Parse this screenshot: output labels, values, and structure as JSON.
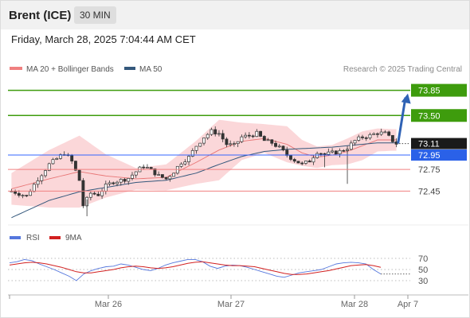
{
  "header": {
    "title": "Brent (ICE)",
    "timeframe": "30 MIN"
  },
  "datetime": "Friday, March 28, 2025 7:04:44 AM CET",
  "legend": {
    "ma20": "MA 20 + Bollinger Bands",
    "ma50": "MA 50",
    "copyright": "Research © 2025 Trading Central"
  },
  "rsi_legend": {
    "rsi": "RSI",
    "ma9": "9MA"
  },
  "colors": {
    "green": "#3e9c0d",
    "blue_line": "#3366ff",
    "red_line": "#f08080",
    "arrow": "#2f62b5",
    "ma20": "#e87575",
    "band_fill": "#f9c9cc",
    "ma50": "#34587c",
    "candle": "#333333",
    "rsi": "#5577dd",
    "rsi_ma": "#d22020",
    "current_bg": "#1a1a1a",
    "support_bg": "#2a61e8"
  },
  "chart_data": [
    {
      "type": "candlestick",
      "title": "Brent (ICE)",
      "timeframe": "30 MIN",
      "x_ticks": [
        "Mar 26",
        "Mar 27",
        "Mar 28",
        "Apr 7"
      ],
      "ylim": [
        72.1,
        74.0
      ],
      "current_price": 73.11,
      "levels": [
        {
          "value": 73.85,
          "label": "73.85",
          "style": "green-line-tag"
        },
        {
          "value": 73.5,
          "label": "73.50",
          "style": "green-line-tag"
        },
        {
          "value": 73.11,
          "label": "73.11",
          "style": "current-price-tag"
        },
        {
          "value": 72.95,
          "label": "72.95",
          "style": "blue-line-tag"
        },
        {
          "value": 72.75,
          "label": "72.75",
          "style": "red-line-text"
        },
        {
          "value": 72.45,
          "label": "72.45",
          "style": "red-line-text"
        }
      ],
      "projection": {
        "from": 73.11,
        "to": 73.85,
        "direction": "up"
      },
      "close_path": [
        [
          0,
          72.45
        ],
        [
          4,
          72.38
        ],
        [
          7,
          72.62
        ],
        [
          10,
          72.82
        ],
        [
          12,
          72.9
        ],
        [
          14,
          72.98
        ],
        [
          16,
          72.86
        ],
        [
          18,
          72.6
        ],
        [
          19,
          72.25
        ],
        [
          21,
          72.42
        ],
        [
          23,
          72.4
        ],
        [
          25,
          72.52
        ],
        [
          27,
          72.58
        ],
        [
          29,
          72.6
        ],
        [
          31,
          72.63
        ],
        [
          33,
          72.72
        ],
        [
          35,
          72.8
        ],
        [
          37,
          72.74
        ],
        [
          39,
          72.66
        ],
        [
          41,
          72.62
        ],
        [
          43,
          72.72
        ],
        [
          45,
          72.85
        ],
        [
          47,
          72.92
        ],
        [
          49,
          73.08
        ],
        [
          51,
          73.2
        ],
        [
          53,
          73.28
        ],
        [
          55,
          73.25
        ],
        [
          57,
          73.1
        ],
        [
          59,
          73.08
        ],
        [
          61,
          73.2
        ],
        [
          63,
          73.22
        ],
        [
          65,
          73.25
        ],
        [
          67,
          73.15
        ],
        [
          69,
          73.12
        ],
        [
          71,
          73.05
        ],
        [
          73,
          72.95
        ],
        [
          75,
          72.88
        ],
        [
          77,
          72.82
        ],
        [
          79,
          72.87
        ],
        [
          81,
          73.0
        ],
        [
          83,
          72.96
        ],
        [
          85,
          72.98
        ],
        [
          87,
          73.0
        ],
        [
          89,
          73.05
        ],
        [
          91,
          73.15
        ],
        [
          93,
          73.2
        ],
        [
          95,
          73.22
        ],
        [
          97,
          73.26
        ],
        [
          99,
          73.25
        ],
        [
          100,
          73.2
        ],
        [
          101,
          73.15
        ],
        [
          102,
          73.11
        ]
      ],
      "ma20_path": [
        [
          0,
          72.48
        ],
        [
          10,
          72.62
        ],
        [
          18,
          72.72
        ],
        [
          25,
          72.66
        ],
        [
          33,
          72.62
        ],
        [
          41,
          72.64
        ],
        [
          49,
          72.85
        ],
        [
          55,
          73.02
        ],
        [
          61,
          73.14
        ],
        [
          67,
          73.18
        ],
        [
          73,
          73.1
        ],
        [
          77,
          72.98
        ],
        [
          81,
          72.92
        ],
        [
          85,
          72.95
        ],
        [
          89,
          73.0
        ],
        [
          93,
          73.08
        ],
        [
          97,
          73.16
        ],
        [
          101,
          73.16
        ]
      ],
      "ma50_path": [
        [
          0,
          72.08
        ],
        [
          10,
          72.32
        ],
        [
          18,
          72.44
        ],
        [
          25,
          72.5
        ],
        [
          33,
          72.57
        ],
        [
          41,
          72.6
        ],
        [
          49,
          72.7
        ],
        [
          55,
          72.82
        ],
        [
          61,
          72.93
        ],
        [
          67,
          73.0
        ],
        [
          73,
          73.03
        ],
        [
          77,
          73.04
        ],
        [
          81,
          73.05
        ],
        [
          85,
          73.06
        ],
        [
          89,
          73.08
        ],
        [
          93,
          73.1
        ],
        [
          97,
          73.12
        ],
        [
          101,
          73.12
        ]
      ],
      "band_width_path": [
        [
          0,
          0.22
        ],
        [
          10,
          0.4
        ],
        [
          18,
          0.5
        ],
        [
          25,
          0.3
        ],
        [
          33,
          0.15
        ],
        [
          41,
          0.18
        ],
        [
          49,
          0.3
        ],
        [
          55,
          0.42
        ],
        [
          61,
          0.26
        ],
        [
          67,
          0.2
        ],
        [
          73,
          0.25
        ],
        [
          77,
          0.18
        ],
        [
          81,
          0.15
        ],
        [
          85,
          0.14
        ],
        [
          89,
          0.18
        ],
        [
          93,
          0.2
        ],
        [
          97,
          0.16
        ],
        [
          101,
          0.15
        ]
      ]
    },
    {
      "type": "line",
      "series": [
        {
          "name": "RSI",
          "values": [
            62,
            64,
            68,
            66,
            60,
            55,
            50,
            44,
            38,
            30,
            42,
            48,
            52,
            55,
            56,
            60,
            58,
            54,
            50,
            48,
            52,
            58,
            62,
            65,
            68,
            68,
            64,
            56,
            52,
            56,
            58,
            57,
            54,
            50,
            46,
            42,
            38,
            36,
            40,
            44,
            46,
            48,
            50,
            55,
            60,
            62,
            63,
            62,
            60,
            50,
            42
          ]
        },
        {
          "name": "9MA",
          "values": [
            58,
            60,
            62,
            63,
            62,
            60,
            57,
            54,
            50,
            46,
            44,
            44,
            46,
            48,
            50,
            53,
            55,
            56,
            55,
            53,
            52,
            53,
            55,
            58,
            61,
            63,
            64,
            62,
            60,
            58,
            57,
            57,
            56,
            55,
            52,
            49,
            46,
            43,
            41,
            41,
            42,
            44,
            46,
            48,
            51,
            54,
            57,
            58,
            59,
            57,
            54
          ]
        }
      ],
      "ylim": [
        20,
        80
      ],
      "y_ticks": [
        "70",
        "50",
        "30"
      ]
    }
  ]
}
